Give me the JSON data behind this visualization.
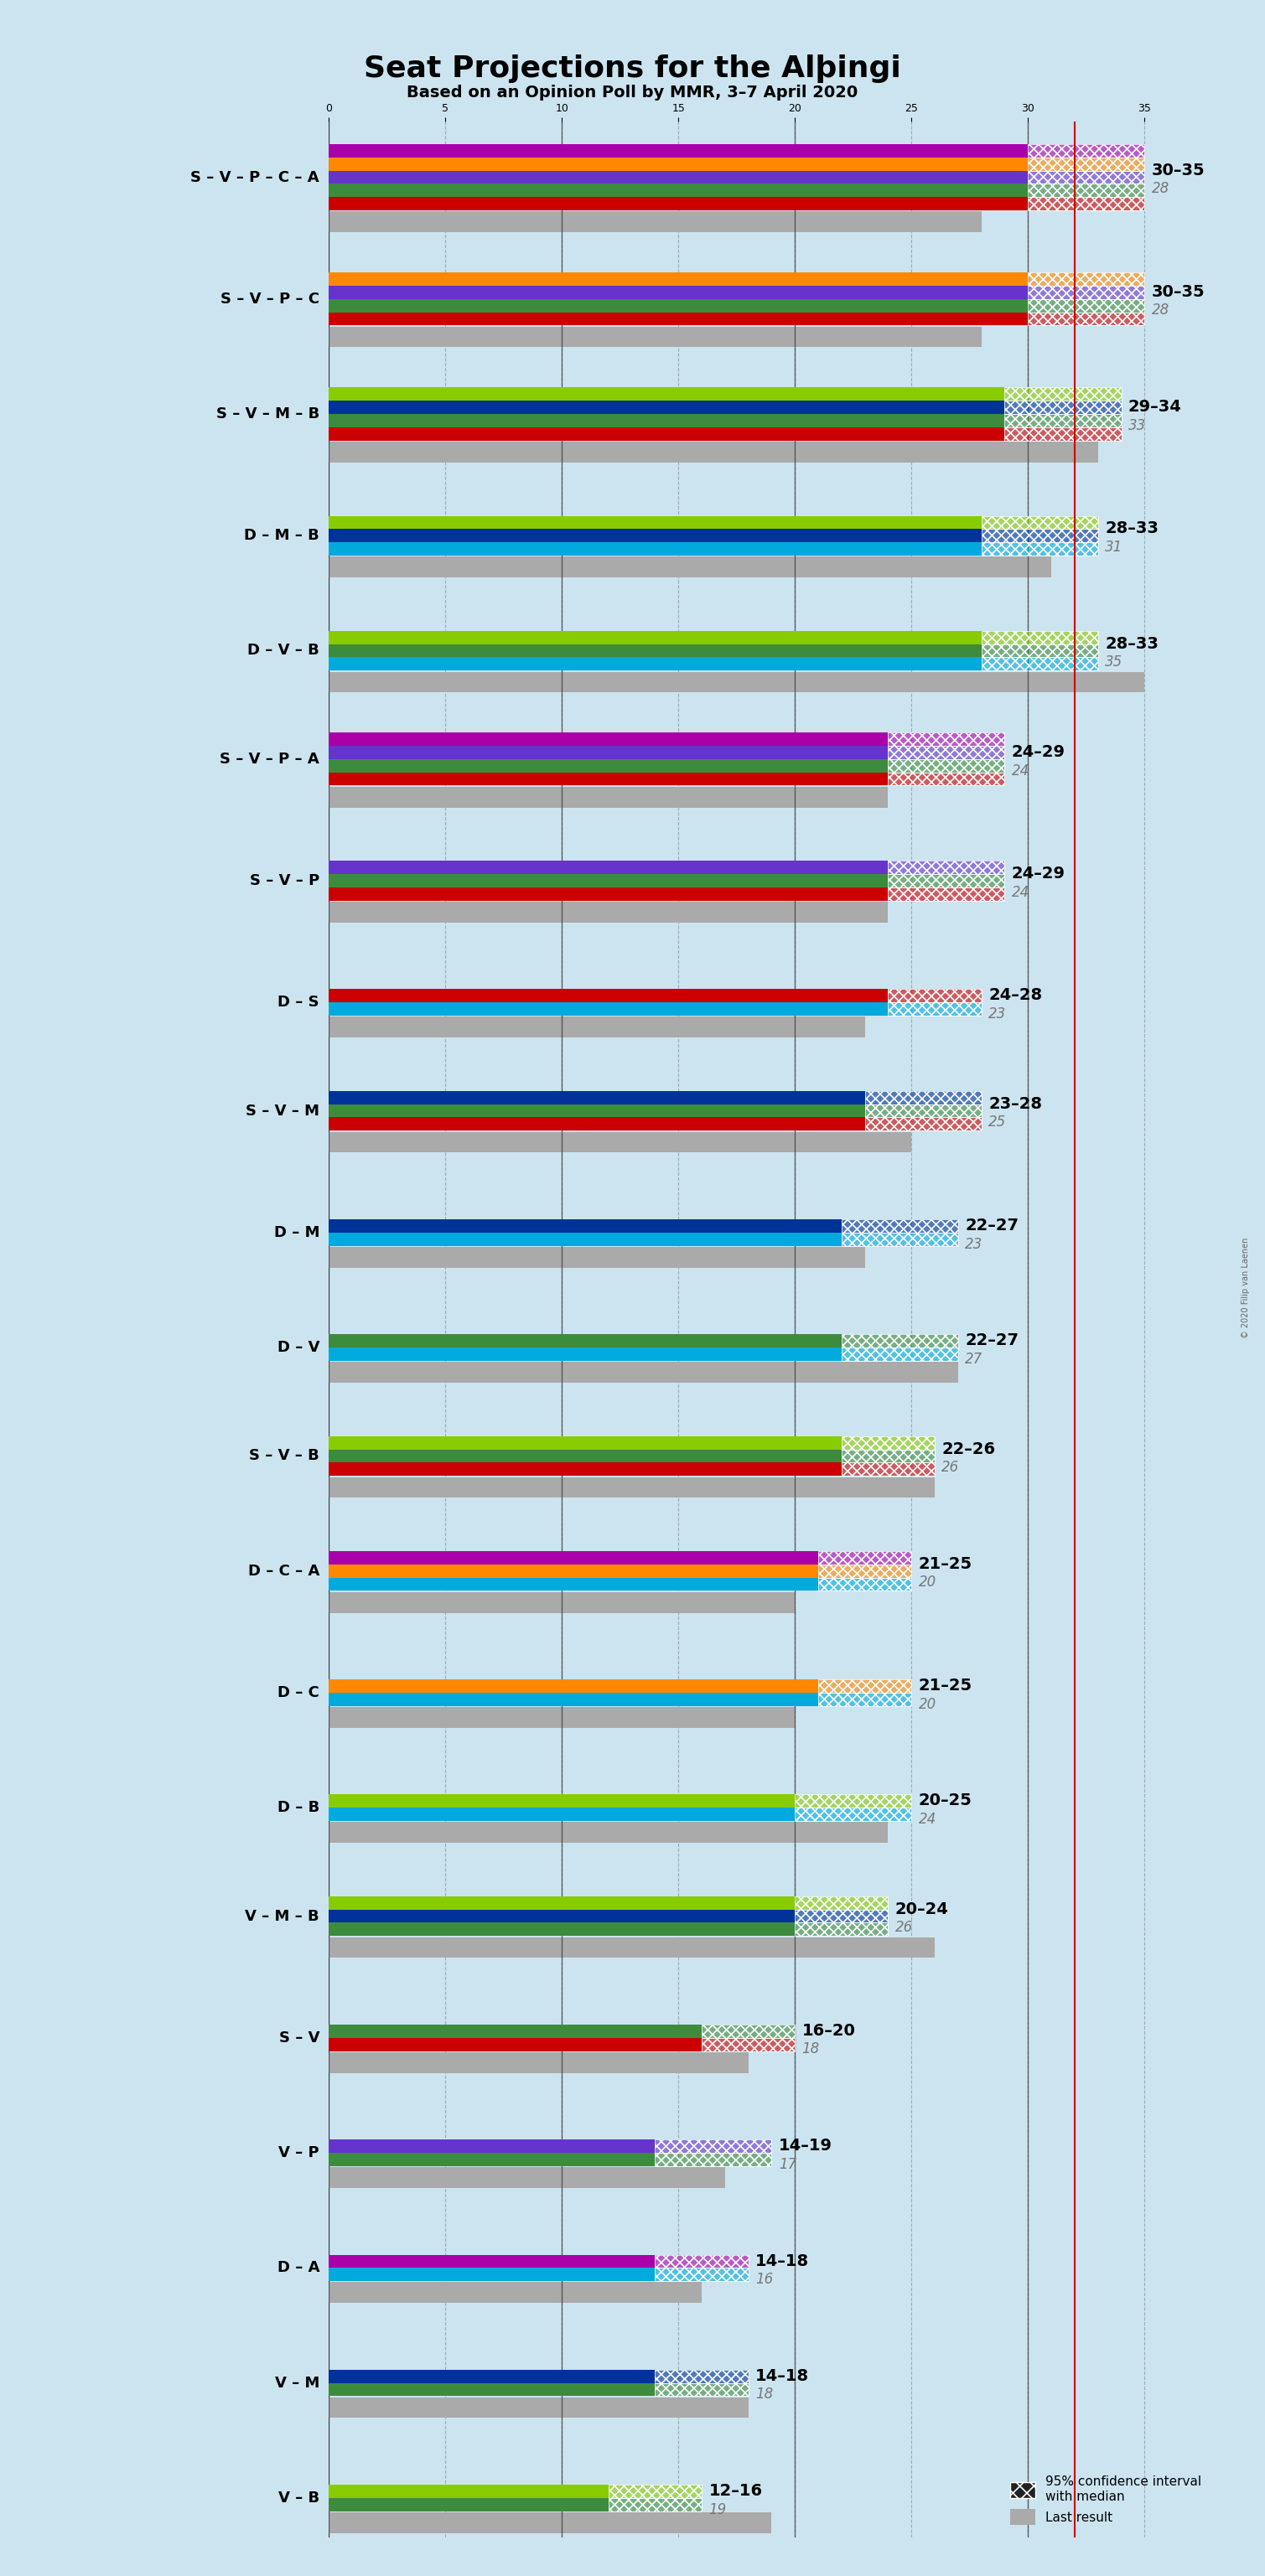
{
  "title": "Seat Projections for the Alþingi",
  "subtitle": "Based on an Opinion Poll by MMR, 3–7 April 2020",
  "background_color": "#cce4f0",
  "fig_width": 15.09,
  "fig_height": 30.74,
  "coalitions": [
    {
      "name": "S – V – P – C – A",
      "range_low": 30,
      "range_high": 35,
      "last_result": 28,
      "colors": [
        "#CC0000",
        "#3D8B3D",
        "#6633CC",
        "#FF8800",
        "#AA00AA"
      ]
    },
    {
      "name": "S – V – P – C",
      "range_low": 30,
      "range_high": 35,
      "last_result": 28,
      "colors": [
        "#CC0000",
        "#3D8B3D",
        "#6633CC",
        "#FF8800"
      ]
    },
    {
      "name": "S – V – M – B",
      "range_low": 29,
      "range_high": 34,
      "last_result": 33,
      "colors": [
        "#CC0000",
        "#3D8B3D",
        "#003399",
        "#88CC00"
      ]
    },
    {
      "name": "D – M – B",
      "range_low": 28,
      "range_high": 33,
      "last_result": 31,
      "colors": [
        "#00AADD",
        "#003399",
        "#88CC00"
      ]
    },
    {
      "name": "D – V – B",
      "range_low": 28,
      "range_high": 33,
      "last_result": 35,
      "colors": [
        "#00AADD",
        "#3D8B3D",
        "#88CC00"
      ]
    },
    {
      "name": "S – V – P – A",
      "range_low": 24,
      "range_high": 29,
      "last_result": 24,
      "colors": [
        "#CC0000",
        "#3D8B3D",
        "#6633CC",
        "#AA00AA"
      ]
    },
    {
      "name": "S – V – P",
      "range_low": 24,
      "range_high": 29,
      "last_result": 24,
      "colors": [
        "#CC0000",
        "#3D8B3D",
        "#6633CC"
      ]
    },
    {
      "name": "D – S",
      "range_low": 24,
      "range_high": 28,
      "last_result": 23,
      "colors": [
        "#00AADD",
        "#CC0000"
      ]
    },
    {
      "name": "S – V – M",
      "range_low": 23,
      "range_high": 28,
      "last_result": 25,
      "colors": [
        "#CC0000",
        "#3D8B3D",
        "#003399"
      ]
    },
    {
      "name": "D – M",
      "range_low": 22,
      "range_high": 27,
      "last_result": 23,
      "colors": [
        "#00AADD",
        "#003399"
      ]
    },
    {
      "name": "D – V",
      "range_low": 22,
      "range_high": 27,
      "last_result": 27,
      "colors": [
        "#00AADD",
        "#3D8B3D"
      ]
    },
    {
      "name": "S – V – B",
      "range_low": 22,
      "range_high": 26,
      "last_result": 26,
      "colors": [
        "#CC0000",
        "#3D8B3D",
        "#88CC00"
      ]
    },
    {
      "name": "D – C – A",
      "range_low": 21,
      "range_high": 25,
      "last_result": 20,
      "colors": [
        "#00AADD",
        "#FF8800",
        "#AA00AA"
      ]
    },
    {
      "name": "D – C",
      "range_low": 21,
      "range_high": 25,
      "last_result": 20,
      "colors": [
        "#00AADD",
        "#FF8800"
      ]
    },
    {
      "name": "D – B",
      "range_low": 20,
      "range_high": 25,
      "last_result": 24,
      "colors": [
        "#00AADD",
        "#88CC00"
      ]
    },
    {
      "name": "V – M – B",
      "range_low": 20,
      "range_high": 24,
      "last_result": 26,
      "colors": [
        "#3D8B3D",
        "#003399",
        "#88CC00"
      ]
    },
    {
      "name": "S – V",
      "range_low": 16,
      "range_high": 20,
      "last_result": 18,
      "colors": [
        "#CC0000",
        "#3D8B3D"
      ]
    },
    {
      "name": "V – P",
      "range_low": 14,
      "range_high": 19,
      "last_result": 17,
      "colors": [
        "#3D8B3D",
        "#6633CC"
      ]
    },
    {
      "name": "D – A",
      "range_low": 14,
      "range_high": 18,
      "last_result": 16,
      "colors": [
        "#00AADD",
        "#AA00AA"
      ]
    },
    {
      "name": "V – M",
      "range_low": 14,
      "range_high": 18,
      "last_result": 18,
      "colors": [
        "#3D8B3D",
        "#003399"
      ]
    },
    {
      "name": "V – B",
      "range_low": 12,
      "range_high": 16,
      "last_result": 19,
      "colors": [
        "#3D8B3D",
        "#88CC00"
      ]
    }
  ],
  "majority_line": 32,
  "x_max": 38,
  "last_result_color": "#aaaaaa",
  "red_line_color": "#CC0000",
  "grid_color": "#555555",
  "title_fontsize": 26,
  "subtitle_fontsize": 14,
  "label_fontsize": 13,
  "range_fontsize": 14,
  "last_fontsize": 12
}
